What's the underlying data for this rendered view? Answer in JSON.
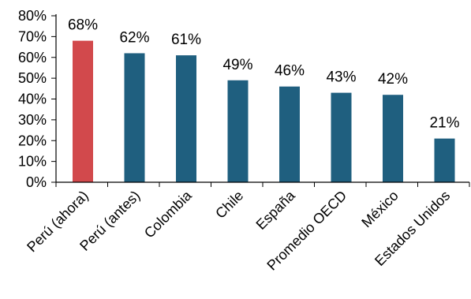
{
  "colors": {
    "highlight_bar": "#d2494c",
    "bar": "#1f5f7f",
    "axis": "#000000",
    "text": "#000000"
  },
  "chart_data": {
    "type": "bar",
    "title": "",
    "xlabel": "",
    "ylabel": "",
    "categories": [
      "Perú (ahora)",
      "Perú (antes)",
      "Colombia",
      "Chile",
      "España",
      "Promedio OECD",
      "México",
      "Estados Unidos"
    ],
    "values": [
      68,
      62,
      61,
      49,
      46,
      43,
      42,
      21
    ],
    "value_labels": [
      "68%",
      "62%",
      "61%",
      "49%",
      "46%",
      "43%",
      "42%",
      "21%"
    ],
    "highlight_index": 0,
    "ylim": [
      0,
      80
    ],
    "yticks": [
      0,
      10,
      20,
      30,
      40,
      50,
      60,
      70,
      80
    ],
    "ytick_labels": [
      "0%",
      "10%",
      "20%",
      "30%",
      "40%",
      "50%",
      "60%",
      "70%",
      "80%"
    ],
    "grid": false,
    "legend": "none"
  }
}
